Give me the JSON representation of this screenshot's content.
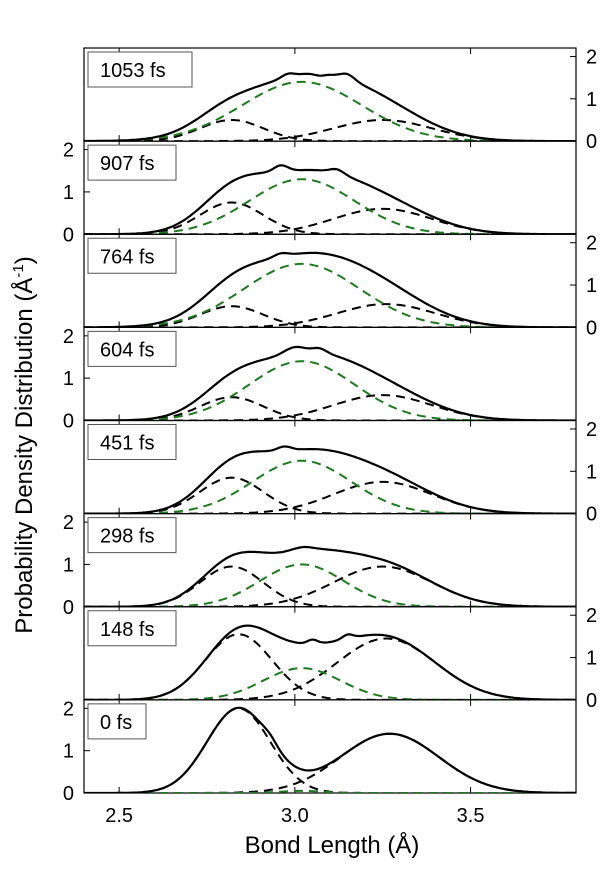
{
  "chart_data": {
    "type": "line",
    "xlabel": "Bond Length (Å)",
    "ylabel": "Probability Density Distribution (Å",
    "ylabel_superscript": "-1",
    "ylabel_close": ")",
    "xlim": [
      2.4,
      3.8
    ],
    "ylim": [
      0,
      2.2
    ],
    "x_ticks": [
      2.5,
      3.0,
      3.5
    ],
    "x_tick_labels": [
      "2.5",
      "3.0",
      "3.5"
    ],
    "y_ticks": [
      0,
      1,
      2
    ],
    "y_tick_labels": [
      "0",
      "1",
      "2"
    ],
    "panel_order": "top-to-bottom",
    "panels": [
      {
        "label": "1053 fs",
        "y_axis_side": "right",
        "total": {
          "peaks": [
            [
              0.32,
              2.8,
              0.085
            ],
            [
              1.45,
              3.02,
              0.17
            ],
            [
              0.5,
              3.25,
              0.135
            ]
          ],
          "features": [
            [
              0.08,
              2.98,
              0.018
            ],
            [
              0.12,
              3.15,
              0.02
            ],
            [
              -0.05,
              3.07,
              0.015
            ]
          ]
        },
        "components": {
          "left": [
            0.5,
            2.82,
            0.09
          ],
          "center": [
            1.4,
            3.02,
            0.17
          ],
          "right": [
            0.5,
            3.25,
            0.14
          ]
        }
      },
      {
        "label": "907 fs",
        "y_axis_side": "left",
        "total": {
          "peaks": [
            [
              0.7,
              2.82,
              0.09
            ],
            [
              1.3,
              3.02,
              0.15
            ],
            [
              0.6,
              3.25,
              0.14
            ]
          ],
          "features": [
            [
              0.15,
              2.96,
              0.02
            ],
            [
              0.1,
              3.12,
              0.02
            ]
          ]
        },
        "components": {
          "left": [
            0.75,
            2.82,
            0.09
          ],
          "center": [
            1.3,
            3.02,
            0.15
          ],
          "right": [
            0.6,
            3.25,
            0.14
          ]
        }
      },
      {
        "label": "764 fs",
        "y_axis_side": "right",
        "total": {
          "peaks": [
            [
              0.5,
              2.82,
              0.09
            ],
            [
              1.55,
              3.02,
              0.165
            ],
            [
              0.6,
              3.25,
              0.14
            ]
          ],
          "features": [
            [
              0.08,
              2.96,
              0.02
            ]
          ]
        },
        "components": {
          "left": [
            0.5,
            2.82,
            0.09
          ],
          "center": [
            1.5,
            3.02,
            0.165
          ],
          "right": [
            0.55,
            3.26,
            0.14
          ]
        }
      },
      {
        "label": "604 fs",
        "y_axis_side": "left",
        "total": {
          "peaks": [
            [
              0.55,
              2.82,
              0.09
            ],
            [
              1.4,
              3.02,
              0.15
            ],
            [
              0.6,
              3.25,
              0.14
            ]
          ],
          "features": [
            [
              0.15,
              3.0,
              0.03
            ],
            [
              0.1,
              3.07,
              0.02
            ]
          ]
        },
        "components": {
          "left": [
            0.55,
            2.82,
            0.09
          ],
          "center": [
            1.4,
            3.02,
            0.15
          ],
          "right": [
            0.6,
            3.25,
            0.14
          ]
        }
      },
      {
        "label": "451 fs",
        "y_axis_side": "right",
        "total": {
          "peaks": [
            [
              0.85,
              2.82,
              0.09
            ],
            [
              1.25,
              3.02,
              0.14
            ],
            [
              0.75,
              3.25,
              0.14
            ]
          ],
          "features": [
            [
              0.1,
              2.97,
              0.02
            ]
          ]
        },
        "components": {
          "left": [
            0.85,
            2.82,
            0.09
          ],
          "center": [
            1.25,
            3.02,
            0.14
          ],
          "right": [
            0.75,
            3.25,
            0.14
          ]
        }
      },
      {
        "label": "298 fs",
        "y_axis_side": "left",
        "total": {
          "peaks": [
            [
              0.95,
              2.82,
              0.09
            ],
            [
              1.0,
              3.02,
              0.12
            ],
            [
              0.95,
              3.25,
              0.14
            ]
          ],
          "features": [
            [
              0.08,
              3.02,
              0.03
            ]
          ]
        },
        "components": {
          "left": [
            0.95,
            2.82,
            0.09
          ],
          "center": [
            1.0,
            3.02,
            0.12
          ],
          "right": [
            0.95,
            3.25,
            0.14
          ]
        }
      },
      {
        "label": "148 fs",
        "y_axis_side": "right",
        "total": {
          "peaks": [
            [
              1.5,
              2.84,
              0.095
            ],
            [
              0.75,
              3.02,
              0.11
            ],
            [
              1.45,
              3.26,
              0.14
            ]
          ],
          "features": [
            [
              0.1,
              3.05,
              0.015
            ],
            [
              0.1,
              3.15,
              0.015
            ]
          ]
        },
        "components": {
          "left": [
            1.55,
            2.84,
            0.095
          ],
          "center": [
            0.75,
            3.02,
            0.11
          ],
          "right": [
            1.45,
            3.26,
            0.14
          ]
        }
      },
      {
        "label": "0 fs",
        "y_axis_side": "left",
        "total": {
          "peaks": [
            [
              2.0,
              2.84,
              0.09
            ],
            [
              1.4,
              3.27,
              0.14
            ]
          ],
          "features": [
            [
              0.1,
              2.93,
              0.02
            ]
          ]
        },
        "components": {
          "left": [
            2.0,
            2.84,
            0.09
          ],
          "center": [
            0.05,
            3.02,
            0.06
          ],
          "right": [
            1.4,
            3.27,
            0.14
          ]
        }
      }
    ],
    "series_styles": {
      "total": "solid-black",
      "left": "dashed-black",
      "right": "dashed-black",
      "center": "dashed-green"
    },
    "colors": {
      "total": "#000000",
      "side": "#000000",
      "center": "#1f7a1f",
      "frame": "#000000"
    }
  }
}
